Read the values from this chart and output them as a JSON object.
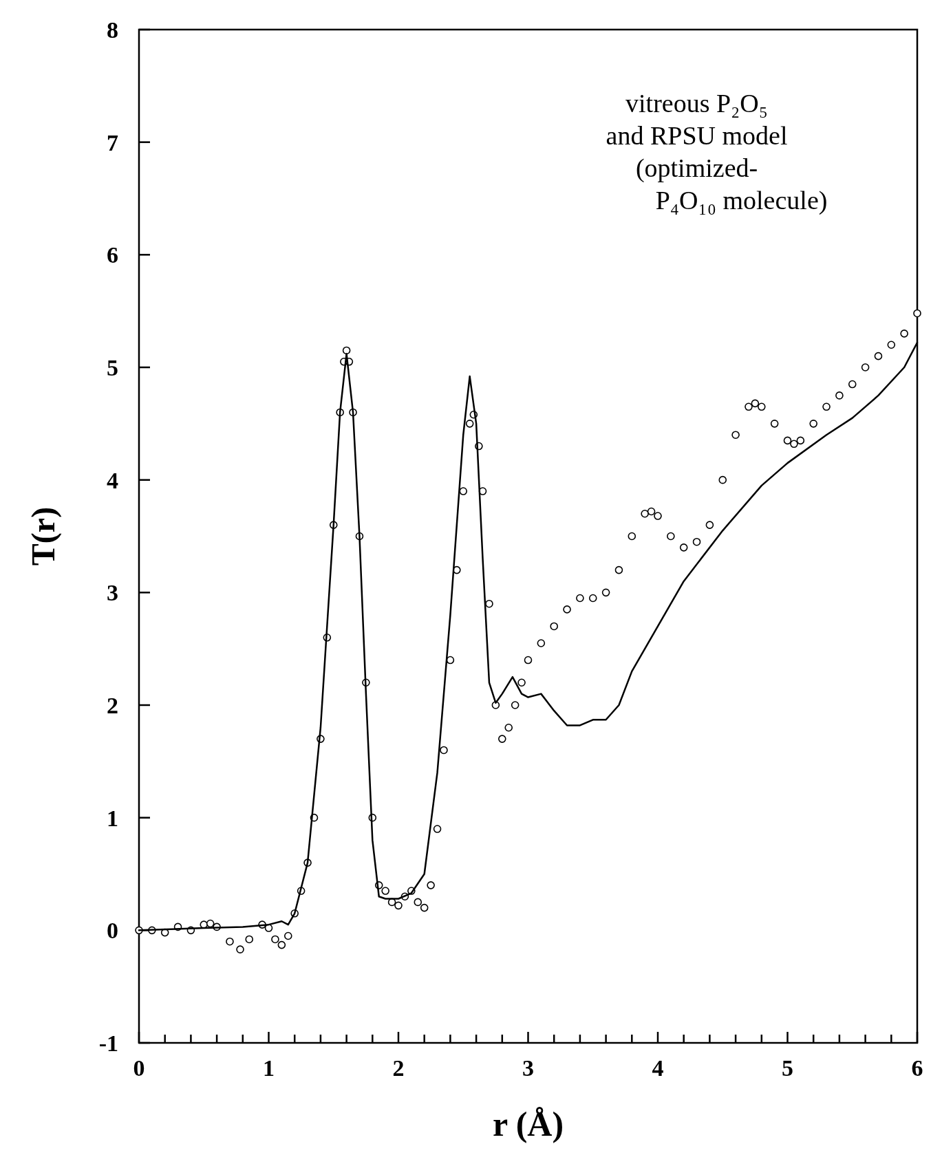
{
  "chart_data": {
    "type": "line",
    "xlabel": "r  (Å)",
    "ylabel": "T(r)",
    "annotations": [
      "vitreous P₂O₅",
      "and RPSU model",
      "(optimized-",
      "P₄O₁₀ molecule)"
    ],
    "xlim": [
      0,
      6
    ],
    "ylim": [
      -1,
      8
    ],
    "xticks": [
      0,
      {
        "value": 0.2,
        "label": null
      },
      {
        "value": 0.4,
        "label": null
      },
      {
        "value": 0.6,
        "label": null
      },
      {
        "value": 0.8,
        "label": null
      },
      1,
      {
        "value": 1.2,
        "label": null
      },
      {
        "value": 1.4,
        "label": null
      },
      {
        "value": 1.6,
        "label": null
      },
      {
        "value": 1.8,
        "label": null
      },
      2,
      {
        "value": 2.2,
        "label": null
      },
      {
        "value": 2.4,
        "label": null
      },
      {
        "value": 2.6,
        "label": null
      },
      {
        "value": 2.8,
        "label": null
      },
      3,
      {
        "value": 3.2,
        "label": null
      },
      {
        "value": 3.4,
        "label": null
      },
      {
        "value": 3.6,
        "label": null
      },
      {
        "value": 3.8,
        "label": null
      },
      4,
      {
        "value": 4.2,
        "label": null
      },
      {
        "value": 4.4,
        "label": null
      },
      {
        "value": 4.6,
        "label": null
      },
      {
        "value": 4.8,
        "label": null
      },
      5,
      {
        "value": 5.2,
        "label": null
      },
      {
        "value": 5.4,
        "label": null
      },
      {
        "value": 5.6,
        "label": null
      },
      {
        "value": 5.8,
        "label": null
      },
      6
    ],
    "yticks": [
      -1,
      0,
      1,
      2,
      3,
      4,
      5,
      6,
      7,
      8
    ],
    "grid": false,
    "series": [
      {
        "type": "scatter",
        "marker": "circle",
        "color": "#000000",
        "x": [
          0,
          0.1,
          0.2,
          0.3,
          0.4,
          0.5,
          0.55,
          0.6,
          0.7,
          0.78,
          0.85,
          0.95,
          1.0,
          1.05,
          1.1,
          1.15,
          1.2,
          1.25,
          1.3,
          1.35,
          1.4,
          1.45,
          1.5,
          1.55,
          1.58,
          1.6,
          1.62,
          1.65,
          1.7,
          1.75,
          1.8,
          1.85,
          1.9,
          1.95,
          2.0,
          2.05,
          2.1,
          2.15,
          2.2,
          2.25,
          2.3,
          2.35,
          2.4,
          2.45,
          2.5,
          2.55,
          2.58,
          2.62,
          2.65,
          2.7,
          2.75,
          2.8,
          2.85,
          2.9,
          2.95,
          3.0,
          3.1,
          3.2,
          3.3,
          3.4,
          3.5,
          3.6,
          3.7,
          3.8,
          3.9,
          3.95,
          4.0,
          4.1,
          4.2,
          4.3,
          4.4,
          4.5,
          4.6,
          4.7,
          4.75,
          4.8,
          4.9,
          5.0,
          5.05,
          5.1,
          5.2,
          5.3,
          5.4,
          5.5,
          5.6,
          5.7,
          5.8,
          5.9,
          6.0
        ],
        "values": [
          0,
          0,
          -0.02,
          0.03,
          0,
          0.05,
          0.06,
          0.03,
          -0.1,
          -0.17,
          -0.08,
          0.05,
          0.02,
          -0.08,
          -0.13,
          -0.05,
          0.15,
          0.35,
          0.6,
          1.0,
          1.7,
          2.6,
          3.6,
          4.6,
          5.05,
          5.15,
          5.05,
          4.6,
          3.5,
          2.2,
          1.0,
          0.4,
          0.35,
          0.25,
          0.22,
          0.3,
          0.35,
          0.25,
          0.2,
          0.4,
          0.9,
          1.6,
          2.4,
          3.2,
          3.9,
          4.5,
          4.58,
          4.3,
          3.9,
          2.9,
          2.0,
          1.7,
          1.8,
          2.0,
          2.2,
          2.4,
          2.55,
          2.7,
          2.85,
          2.95,
          2.95,
          3.0,
          3.2,
          3.5,
          3.7,
          3.72,
          3.68,
          3.5,
          3.4,
          3.45,
          3.6,
          4.0,
          4.4,
          4.65,
          4.68,
          4.65,
          4.5,
          4.35,
          4.32,
          4.35,
          4.5,
          4.65,
          4.75,
          4.85,
          5.0,
          5.1,
          5.2,
          5.3,
          5.48
        ]
      },
      {
        "marker": "none",
        "color": "#000000",
        "x": [
          0,
          0.5,
          0.8,
          1.0,
          1.1,
          1.15,
          1.2,
          1.3,
          1.4,
          1.5,
          1.55,
          1.6,
          1.65,
          1.7,
          1.75,
          1.8,
          1.85,
          1.9,
          2.0,
          2.1,
          2.2,
          2.3,
          2.4,
          2.45,
          2.5,
          2.55,
          2.6,
          2.65,
          2.7,
          2.75,
          2.8,
          2.88,
          2.95,
          3.0,
          3.1,
          3.2,
          3.3,
          3.4,
          3.5,
          3.6,
          3.7,
          3.8,
          4.0,
          4.2,
          4.5,
          4.8,
          5.0,
          5.3,
          5.5,
          5.7,
          5.9,
          6.0
        ],
        "values": [
          0,
          0.02,
          0.03,
          0.05,
          0.08,
          0.05,
          0.15,
          0.6,
          1.8,
          3.6,
          4.6,
          5.12,
          4.6,
          3.5,
          2.1,
          0.8,
          0.3,
          0.28,
          0.28,
          0.33,
          0.5,
          1.4,
          2.8,
          3.6,
          4.4,
          4.92,
          4.5,
          3.3,
          2.2,
          2.02,
          2.1,
          2.25,
          2.1,
          2.07,
          2.1,
          1.95,
          1.82,
          1.82,
          1.87,
          1.87,
          2.0,
          2.3,
          2.7,
          3.1,
          3.55,
          3.95,
          4.15,
          4.4,
          4.55,
          4.75,
          5.0,
          5.22
        ]
      }
    ]
  }
}
